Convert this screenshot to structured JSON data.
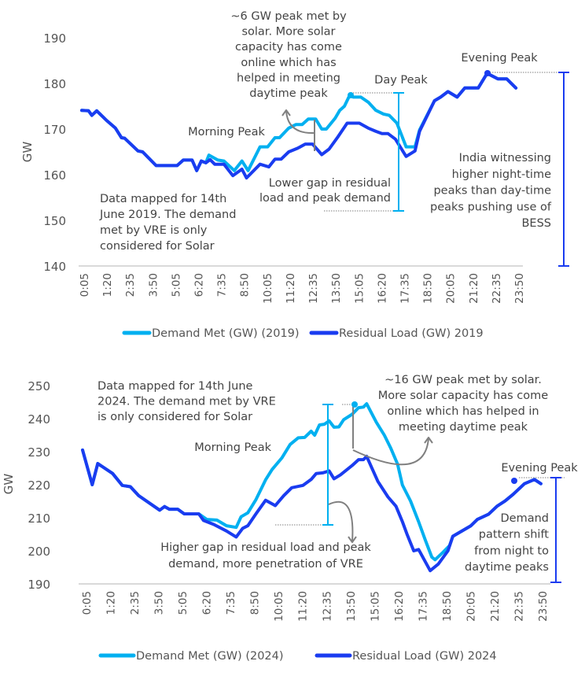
{
  "colors": {
    "demand": "#00b0f0",
    "residual": "#1a3cf0",
    "annotation": "#808080",
    "axis": "#d9d9d9",
    "text": "#444444"
  },
  "chart_data": [
    {
      "type": "line",
      "ylabel": "GW",
      "ylim": [
        140,
        190
      ],
      "yticks": [
        140,
        150,
        160,
        170,
        180,
        190
      ],
      "xticks": [
        "0:05",
        "1:20",
        "2:35",
        "3:50",
        "5:05",
        "6:20",
        "7:35",
        "8:50",
        "10:05",
        "11:20",
        "12:35",
        "13:50",
        "15:05",
        "16:20",
        "17:35",
        "18:50",
        "20:05",
        "21:20",
        "22:35",
        "23:50"
      ],
      "grid": false,
      "legend": "bottom",
      "series": [
        {
          "name": "Demand Met (GW) (2019)",
          "color": "#00b0f0",
          "points": [
            [
              "0:05",
              174.1
            ],
            [
              "0:27",
              174
            ],
            [
              "0:38",
              173
            ],
            [
              "0:54",
              174
            ],
            [
              "1:26",
              171.9
            ],
            [
              "1:55",
              170.2
            ],
            [
              "2:15",
              168.1
            ],
            [
              "2:25",
              168
            ],
            [
              "3:09",
              165.2
            ],
            [
              "3:24",
              165
            ],
            [
              "4:08",
              162
            ],
            [
              "5:17",
              162
            ],
            [
              "5:37",
              163.2
            ],
            [
              "6:06",
              163.2
            ],
            [
              "6:21",
              160.9
            ],
            [
              "6:36",
              163
            ],
            [
              "6:51",
              162.6
            ],
            [
              "7:01",
              164.3
            ],
            [
              "7:30",
              163.2
            ],
            [
              "7:50",
              163
            ],
            [
              "8:24",
              160.9
            ],
            [
              "8:49",
              163
            ],
            [
              "9:09",
              160.9
            ],
            [
              "9:48",
              166.1
            ],
            [
              "10:13",
              166.1
            ],
            [
              "10:37",
              168.1
            ],
            [
              "10:52",
              168.1
            ],
            [
              "11:22",
              170.2
            ],
            [
              "11:46",
              171
            ],
            [
              "12:06",
              171
            ],
            [
              "12:26",
              172.2
            ],
            [
              "12:50",
              172.2
            ],
            [
              "13:10",
              170
            ],
            [
              "13:25",
              170
            ],
            [
              "13:54",
              172.4
            ],
            [
              "14:09",
              174.1
            ],
            [
              "14:24",
              175
            ],
            [
              "14:43",
              177.6
            ],
            [
              "14:53",
              177
            ],
            [
              "15:18",
              177
            ],
            [
              "15:42",
              175.9
            ],
            [
              "16:07",
              174.1
            ],
            [
              "16:32",
              173.3
            ],
            [
              "16:51",
              173
            ],
            [
              "17:16",
              171.3
            ],
            [
              "17:46",
              166.1
            ],
            [
              "18:15",
              166.1
            ],
            [
              "18:30",
              169.8
            ],
            [
              "19:19",
              176.2
            ],
            [
              "19:39",
              177
            ],
            [
              "20:03",
              178.2
            ],
            [
              "20:33",
              177
            ],
            [
              "20:58",
              179
            ],
            [
              "21:42",
              179
            ],
            [
              "22:11",
              182.2
            ],
            [
              "22:46",
              181
            ],
            [
              "23:15",
              181
            ],
            [
              "23:45",
              179
            ]
          ]
        },
        {
          "name": "Residual Load (GW) 2019",
          "color": "#1a3cf0",
          "points": [
            [
              "0:05",
              174.1
            ],
            [
              "0:27",
              174
            ],
            [
              "0:38",
              173
            ],
            [
              "0:54",
              174
            ],
            [
              "1:26",
              171.9
            ],
            [
              "1:55",
              170.2
            ],
            [
              "2:15",
              168.1
            ],
            [
              "2:25",
              168
            ],
            [
              "3:09",
              165.2
            ],
            [
              "3:24",
              165
            ],
            [
              "4:08",
              162
            ],
            [
              "5:17",
              162
            ],
            [
              "5:37",
              163.2
            ],
            [
              "6:06",
              163.2
            ],
            [
              "6:21",
              160.9
            ],
            [
              "6:36",
              163
            ],
            [
              "6:51",
              162.6
            ],
            [
              "7:05",
              163.3
            ],
            [
              "7:20",
              162.3
            ],
            [
              "7:50",
              162.3
            ],
            [
              "8:19",
              159.8
            ],
            [
              "8:49",
              161.2
            ],
            [
              "9:04",
              159.3
            ],
            [
              "9:48",
              162.3
            ],
            [
              "10:17",
              161.7
            ],
            [
              "10:37",
              163.4
            ],
            [
              "10:57",
              163.4
            ],
            [
              "11:22",
              165
            ],
            [
              "11:51",
              165.8
            ],
            [
              "12:16",
              166.7
            ],
            [
              "12:40",
              166.7
            ],
            [
              "13:10",
              164.4
            ],
            [
              "13:34",
              165.6
            ],
            [
              "14:04",
              168.4
            ],
            [
              "14:33",
              171.3
            ],
            [
              "15:13",
              171.3
            ],
            [
              "15:42",
              170.2
            ],
            [
              "16:07",
              169.5
            ],
            [
              "16:27",
              169
            ],
            [
              "16:47",
              169
            ],
            [
              "17:11",
              167.8
            ],
            [
              "17:46",
              164
            ],
            [
              "18:15",
              165.2
            ],
            [
              "18:30",
              169.5
            ],
            [
              "19:19",
              176.2
            ],
            [
              "19:39",
              177
            ],
            [
              "20:03",
              178.2
            ],
            [
              "20:33",
              177
            ],
            [
              "20:58",
              179
            ],
            [
              "21:42",
              179
            ],
            [
              "22:11",
              182.2
            ],
            [
              "22:46",
              181
            ],
            [
              "23:15",
              181
            ],
            [
              "23:45",
              179
            ]
          ]
        }
      ]
    },
    {
      "type": "line",
      "ylabel": "GW",
      "ylim": [
        190,
        250
      ],
      "yticks": [
        190,
        200,
        210,
        220,
        230,
        240,
        250
      ],
      "xticks": [
        "0:05",
        "1:20",
        "2:35",
        "3:50",
        "5:05",
        "6:20",
        "7:35",
        "8:50",
        "10:05",
        "11:20",
        "12:35",
        "13:50",
        "15:05",
        "16:20",
        "17:35",
        "18:50",
        "20:05",
        "21:20",
        "22:35",
        "23:50"
      ],
      "grid": false,
      "legend": "bottom",
      "series": [
        {
          "name": "Demand Met (GW) (2024)",
          "color": "#00b0f0",
          "points": [
            [
              "0:05",
              230.5
            ],
            [
              "0:35",
              220
            ],
            [
              "0:52",
              226.4
            ],
            [
              "1:38",
              223.4
            ],
            [
              "2:08",
              219.8
            ],
            [
              "2:33",
              219.4
            ],
            [
              "2:59",
              216.7
            ],
            [
              "4:04",
              212.3
            ],
            [
              "4:19",
              213.4
            ],
            [
              "4:34",
              212.6
            ],
            [
              "5:00",
              212.6
            ],
            [
              "5:20",
              211.2
            ],
            [
              "6:05",
              211.2
            ],
            [
              "6:30",
              209.5
            ],
            [
              "7:01",
              209.3
            ],
            [
              "7:31",
              207.6
            ],
            [
              "8:01",
              207.1
            ],
            [
              "8:16",
              210.3
            ],
            [
              "8:37",
              211.5
            ],
            [
              "9:02",
              215.5
            ],
            [
              "9:32",
              221.5
            ],
            [
              "9:52",
              224.6
            ],
            [
              "10:23",
              228.2
            ],
            [
              "10:48",
              232.2
            ],
            [
              "11:13",
              234.2
            ],
            [
              "11:33",
              234.3
            ],
            [
              "11:53",
              236.2
            ],
            [
              "12:04",
              235
            ],
            [
              "12:19",
              238.1
            ],
            [
              "12:34",
              238.3
            ],
            [
              "12:49",
              239.3
            ],
            [
              "13:04",
              237.4
            ],
            [
              "13:19",
              237.5
            ],
            [
              "13:34",
              239.7
            ],
            [
              "14:00",
              241.3
            ],
            [
              "14:20",
              243.3
            ],
            [
              "14:35",
              243.5
            ],
            [
              "14:45",
              244.5
            ],
            [
              "15:15",
              238.9
            ],
            [
              "15:40",
              235
            ],
            [
              "16:00",
              231
            ],
            [
              "16:21",
              226.2
            ],
            [
              "16:36",
              219.9
            ],
            [
              "17:01",
              215.1
            ],
            [
              "17:26",
              208.8
            ],
            [
              "17:47",
              203.2
            ],
            [
              "18:07",
              198.1
            ],
            [
              "18:17",
              197.3
            ],
            [
              "18:42",
              199.6
            ],
            [
              "19:02",
              201.6
            ],
            [
              "19:12",
              204.4
            ],
            [
              "20:08",
              207.6
            ],
            [
              "20:28",
              209.5
            ],
            [
              "21:03",
              211.1
            ],
            [
              "21:29",
              213.5
            ],
            [
              "21:54",
              215.1
            ],
            [
              "22:19",
              217.1
            ],
            [
              "22:54",
              220.3
            ],
            [
              "23:25",
              221.6
            ],
            [
              "23:45",
              220.3
            ]
          ]
        },
        {
          "name": "Residual Load (GW) 2024",
          "color": "#1a3cf0",
          "points": [
            [
              "0:05",
              230.5
            ],
            [
              "0:35",
              220
            ],
            [
              "0:52",
              226.4
            ],
            [
              "1:38",
              223.4
            ],
            [
              "2:08",
              219.8
            ],
            [
              "2:33",
              219.4
            ],
            [
              "2:59",
              216.7
            ],
            [
              "4:04",
              212.3
            ],
            [
              "4:19",
              213.4
            ],
            [
              "4:34",
              212.6
            ],
            [
              "5:00",
              212.6
            ],
            [
              "5:20",
              211.2
            ],
            [
              "6:05",
              211.2
            ],
            [
              "6:20",
              209.2
            ],
            [
              "6:51",
              208
            ],
            [
              "7:31",
              206
            ],
            [
              "8:01",
              204.2
            ],
            [
              "8:21",
              206.8
            ],
            [
              "8:37",
              207.6
            ],
            [
              "9:02",
              211.2
            ],
            [
              "9:32",
              215.3
            ],
            [
              "10:02",
              213.7
            ],
            [
              "10:28",
              216.7
            ],
            [
              "10:53",
              219.1
            ],
            [
              "11:28",
              219.8
            ],
            [
              "11:53",
              221.6
            ],
            [
              "12:09",
              223.4
            ],
            [
              "12:29",
              223.6
            ],
            [
              "12:49",
              224.2
            ],
            [
              "13:04",
              221.8
            ],
            [
              "13:24",
              223
            ],
            [
              "14:00",
              225.8
            ],
            [
              "14:20",
              227.6
            ],
            [
              "14:35",
              227.6
            ],
            [
              "14:45",
              228.6
            ],
            [
              "15:20",
              221
            ],
            [
              "15:51",
              216.3
            ],
            [
              "16:16",
              213.5
            ],
            [
              "16:36",
              208.8
            ],
            [
              "16:51",
              204.8
            ],
            [
              "17:11",
              200
            ],
            [
              "17:26",
              200.4
            ],
            [
              "18:02",
              194
            ],
            [
              "18:27",
              196
            ],
            [
              "18:57",
              200
            ],
            [
              "19:12",
              204.4
            ],
            [
              "20:08",
              207.6
            ],
            [
              "20:28",
              209.5
            ],
            [
              "21:03",
              211.1
            ],
            [
              "21:29",
              213.5
            ],
            [
              "21:54",
              215.1
            ],
            [
              "22:19",
              217.1
            ],
            [
              "22:54",
              220.3
            ],
            [
              "23:25",
              221.6
            ],
            [
              "23:45",
              220.3
            ]
          ]
        }
      ]
    }
  ],
  "annotations": {
    "top": {
      "solar": [
        "~6 GW peak met by",
        "solar. More solar",
        "capacity has come",
        "online which has",
        "helped in meeting",
        "daytime peak"
      ],
      "morning": [
        "Morning Peak"
      ],
      "day": [
        "Day Peak"
      ],
      "gap": [
        "Lower gap in residual",
        "load and peak demand"
      ],
      "evening": [
        "Evening Peak"
      ],
      "india": [
        "India witnessing",
        "higher night-time",
        "peaks than day-time",
        "peaks pushing use of",
        "BESS"
      ],
      "note": [
        "Data mapped for 14th",
        "June 2019. The demand",
        "met by VRE is only",
        "considered for Solar"
      ]
    },
    "bottom": {
      "note": [
        "Data mapped for 14th June",
        "2024. The demand met by VRE",
        "is only considered for Solar"
      ],
      "solar": [
        "~16 GW peak met by solar.",
        "More solar capacity has come",
        "online which has helped in",
        "meeting daytime peak"
      ],
      "morning": [
        "Morning Peak"
      ],
      "gap": [
        "Higher gap in residual load and peak",
        "demand, more penetration of VRE"
      ],
      "evening": [
        "Evening Peak"
      ],
      "shift": [
        "Demand",
        "pattern shift",
        "from night to",
        "daytime peaks"
      ]
    }
  }
}
